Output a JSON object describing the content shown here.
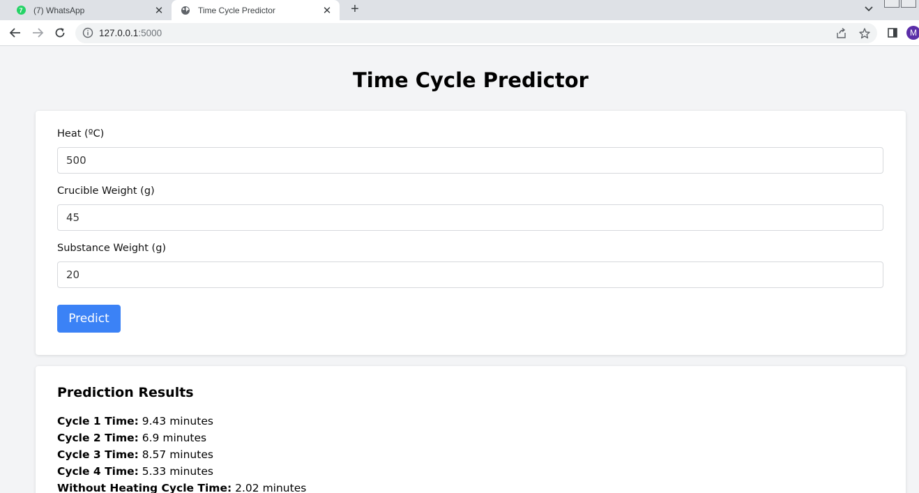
{
  "browser": {
    "tabs": [
      {
        "title": "(7) WhatsApp",
        "badge": "7"
      },
      {
        "title": "Time Cycle Predictor"
      }
    ],
    "url_host": "127.0.0.1",
    "url_port": ":5000",
    "profile_initial": "M"
  },
  "page": {
    "title": "Time Cycle Predictor",
    "form": {
      "fields": [
        {
          "label": "Heat (ºC)",
          "value": "500"
        },
        {
          "label": "Crucible Weight (g)",
          "value": "45"
        },
        {
          "label": "Substance Weight (g)",
          "value": "20"
        }
      ],
      "submit_label": "Predict"
    },
    "results": {
      "title": "Prediction Results",
      "items": [
        {
          "label": "Cycle 1 Time:",
          "value": "9.43 minutes"
        },
        {
          "label": "Cycle 2 Time:",
          "value": "6.9 minutes"
        },
        {
          "label": "Cycle 3 Time:",
          "value": "8.57 minutes"
        },
        {
          "label": "Cycle 4 Time:",
          "value": "5.33 minutes"
        },
        {
          "label": "Without Heating Cycle Time:",
          "value": "2.02 minutes"
        }
      ]
    }
  },
  "colors": {
    "accent": "#3b82f6",
    "page_background": "#f3f4f6"
  }
}
